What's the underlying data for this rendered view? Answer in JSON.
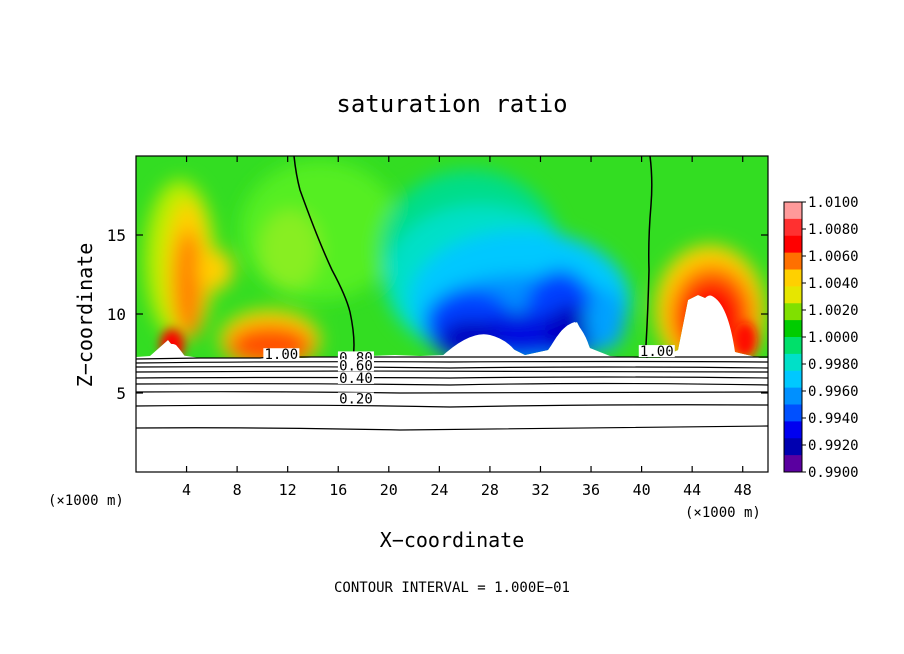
{
  "chart_data": {
    "type": "heatmap",
    "title": "saturation ratio",
    "xlabel": "X−coordinate",
    "ylabel": "Z−coordinate",
    "x_unit": "(×1000 m)",
    "x_unit_right": "(×1000 m)",
    "footer": "CONTOUR INTERVAL = 1.000E−01",
    "xlim": [
      0,
      50
    ],
    "ylim": [
      0,
      20
    ],
    "x_ticks": [
      4,
      8,
      12,
      16,
      20,
      24,
      28,
      32,
      36,
      40,
      44,
      48
    ],
    "y_ticks": [
      5,
      10,
      15
    ],
    "colorbar": {
      "labels": [
        "1.0100",
        "1.0080",
        "1.0060",
        "1.0040",
        "1.0020",
        "1.0000",
        "0.9980",
        "0.9960",
        "0.9940",
        "0.9920",
        "0.9900"
      ],
      "colors": [
        "#ff9a9a",
        "#ff3030",
        "#ff0000",
        "#ff7000",
        "#ffd000",
        "#e6e600",
        "#80e000",
        "#00cc00",
        "#00e06a",
        "#00e0c8",
        "#00c8ff",
        "#0090ff",
        "#0050ff",
        "#0000f0",
        "#0000b0",
        "#5a00a0"
      ]
    },
    "contour_labels": [
      {
        "text": "1.00",
        "x": 11.5,
        "z": 7.2
      },
      {
        "text": "0.80",
        "x": 17.4,
        "z": 7.0
      },
      {
        "text": "0.60",
        "x": 17.4,
        "z": 6.5
      },
      {
        "text": "0.40",
        "x": 17.4,
        "z": 5.7
      },
      {
        "text": "0.20",
        "x": 17.4,
        "z": 4.4
      },
      {
        "text": "1.00",
        "x": 41.2,
        "z": 7.4
      }
    ],
    "regions": [
      {
        "name": "high supersaturation plume",
        "x": 3.8,
        "z": 12.5,
        "value": 1.006
      },
      {
        "name": "moist band",
        "x": 10.5,
        "z": 8.8,
        "value": 1.004
      },
      {
        "name": "subsaturated core",
        "x": 29,
        "z": 10.5,
        "value": 0.992
      },
      {
        "name": "high supersaturation dome",
        "x": 45.5,
        "z": 10.5,
        "value": 1.006
      }
    ],
    "grid": false
  }
}
